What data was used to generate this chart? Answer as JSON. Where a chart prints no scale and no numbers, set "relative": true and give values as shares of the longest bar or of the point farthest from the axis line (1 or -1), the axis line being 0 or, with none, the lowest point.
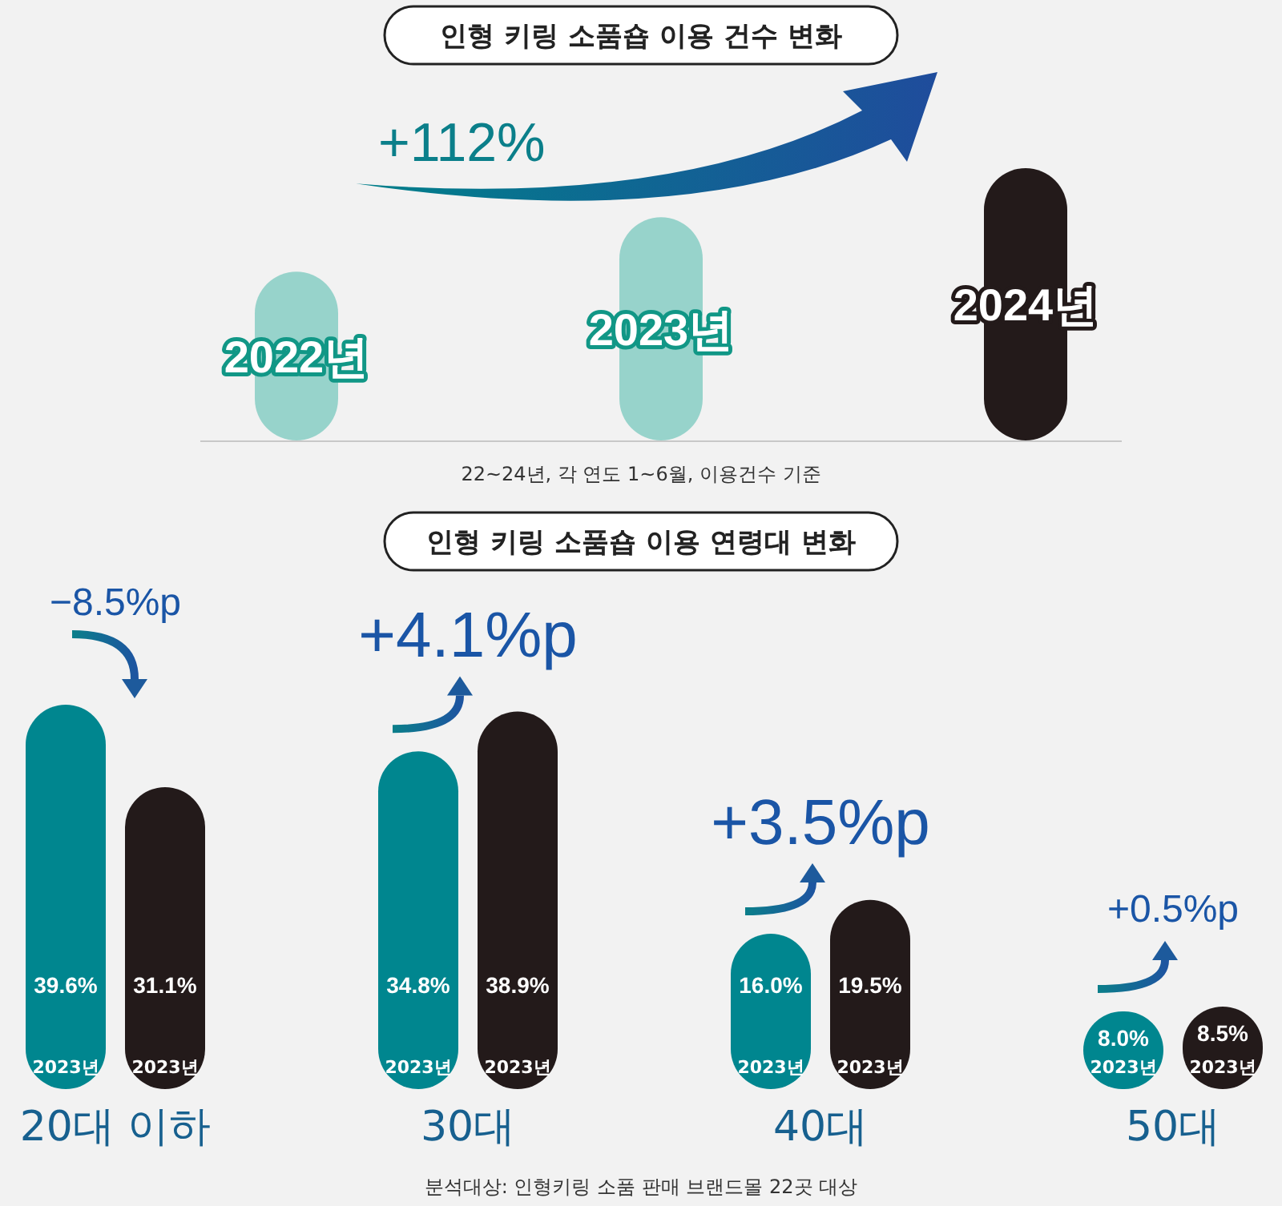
{
  "chart_data": [
    {
      "type": "bar",
      "title": "인형 키링 소품숍 이용 건수 변화",
      "categories": [
        "2022년",
        "2023년",
        "2024년"
      ],
      "values": [
        0.62,
        0.82,
        1
      ],
      "colors": [
        "#97d3cb",
        "#97d3cb",
        "#231a1a"
      ],
      "relative": true,
      "annotations": [
        "+112%",
        "22~24년, 각 연도 1~6월, 이용건수 기준"
      ]
    },
    {
      "type": "bar",
      "title": "인형 키링 소품숍 이용 연령대 변화",
      "categories": [
        "20대 이하",
        "30대",
        "40대",
        "50대"
      ],
      "series": [
        {
          "name": "2023년",
          "color": "#00868f",
          "values": [
            39.6,
            34.8,
            16.0,
            8.0
          ],
          "value_labels": [
            "39.6%",
            "34.8%",
            "16.0%",
            "8.0%"
          ]
        },
        {
          "name": "2023년",
          "color": "#231a1a",
          "values": [
            31.1,
            38.9,
            19.5,
            8.5
          ],
          "value_labels": [
            "31.1%",
            "38.9%",
            "19.5%",
            "8.5%"
          ]
        }
      ],
      "annotations": [
        "−8.5%p",
        "+4.1%p",
        "+3.5%p",
        "+0.5%p",
        "분석대상: 인형키링 소품 판매 브랜드몰 22곳 대상"
      ]
    }
  ]
}
